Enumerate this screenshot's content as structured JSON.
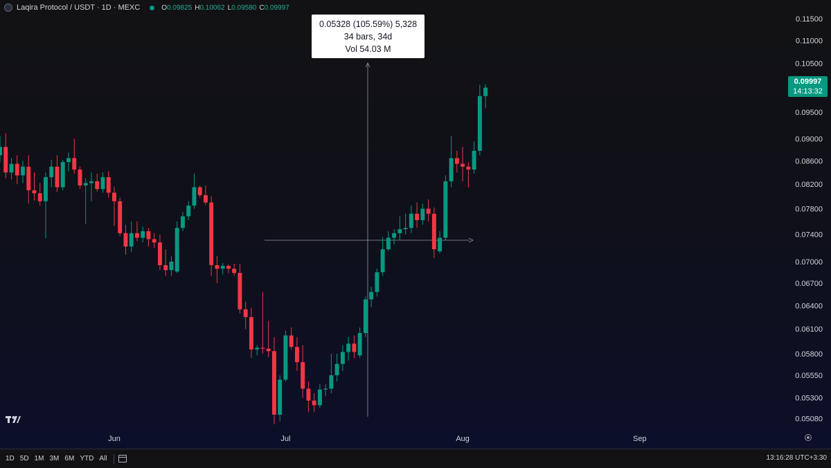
{
  "header": {
    "symbol": "Laqira Protocol / USDT · 1D · MEXC",
    "open_label": "O",
    "open": "0.09825",
    "high_label": "H",
    "high": "0.10062",
    "low_label": "L",
    "low": "0.09580",
    "close_label": "C",
    "close": "0.09997"
  },
  "measure": {
    "line1": "0.05328 (105.59%) 5,328",
    "line2": "34 bars, 34d",
    "line3": "Vol 54.03 M"
  },
  "price_tag": {
    "price": "0.09997",
    "countdown": "14:13:32"
  },
  "bottom_bar": {
    "ranges": [
      "1D",
      "5D",
      "1M",
      "3M",
      "6M",
      "YTD",
      "All"
    ],
    "clock": "13:16:28 UTC+3:30"
  },
  "colors": {
    "up": "#089981",
    "down": "#f23645",
    "text": "#d1d4dc"
  },
  "icons": [
    "tradingview-logo-icon",
    "calendar-icon",
    "gear-icon"
  ],
  "chart_data": {
    "type": "candlestick",
    "y_ticks": [
      "0.11500",
      "0.11000",
      "0.10500",
      "0.10000",
      "0.09500",
      "0.09000",
      "0.08600",
      "0.08200",
      "0.07800",
      "0.07400",
      "0.07000",
      "0.06700",
      "0.06400",
      "0.06100",
      "0.05800",
      "0.05550",
      "0.05300",
      "0.05080"
    ],
    "x_ticks": [
      "Jun",
      "Jul",
      "Aug",
      "Sep"
    ],
    "scale": "log",
    "ylim": [
      0.0497,
      0.1195
    ],
    "x_start": "2024-05-12",
    "x_end": "2024-09-26",
    "grid": false,
    "candles": [
      {
        "date": "2024-05-12",
        "o": 0.087,
        "h": 0.0905,
        "l": 0.0858,
        "c": 0.0885
      },
      {
        "date": "2024-05-13",
        "o": 0.0885,
        "h": 0.091,
        "l": 0.083,
        "c": 0.084
      },
      {
        "date": "2024-05-14",
        "o": 0.084,
        "h": 0.0865,
        "l": 0.0828,
        "c": 0.0855
      },
      {
        "date": "2024-05-15",
        "o": 0.0855,
        "h": 0.087,
        "l": 0.082,
        "c": 0.0835
      },
      {
        "date": "2024-05-16",
        "o": 0.0835,
        "h": 0.086,
        "l": 0.0822,
        "c": 0.085
      },
      {
        "date": "2024-05-17",
        "o": 0.085,
        "h": 0.087,
        "l": 0.0788,
        "c": 0.081
      },
      {
        "date": "2024-05-18",
        "o": 0.081,
        "h": 0.084,
        "l": 0.0793,
        "c": 0.0805
      },
      {
        "date": "2024-05-19",
        "o": 0.0805,
        "h": 0.0822,
        "l": 0.0785,
        "c": 0.0792
      },
      {
        "date": "2024-05-20",
        "o": 0.0792,
        "h": 0.084,
        "l": 0.0734,
        "c": 0.0832
      },
      {
        "date": "2024-05-21",
        "o": 0.0832,
        "h": 0.0862,
        "l": 0.0815,
        "c": 0.085
      },
      {
        "date": "2024-05-22",
        "o": 0.085,
        "h": 0.087,
        "l": 0.0807,
        "c": 0.0815
      },
      {
        "date": "2024-05-23",
        "o": 0.0815,
        "h": 0.0862,
        "l": 0.081,
        "c": 0.0858
      },
      {
        "date": "2024-05-24",
        "o": 0.0858,
        "h": 0.0875,
        "l": 0.0842,
        "c": 0.0865
      },
      {
        "date": "2024-05-25",
        "o": 0.0865,
        "h": 0.09,
        "l": 0.0838,
        "c": 0.0845
      },
      {
        "date": "2024-05-26",
        "o": 0.0845,
        "h": 0.085,
        "l": 0.0812,
        "c": 0.0818
      },
      {
        "date": "2024-05-27",
        "o": 0.0818,
        "h": 0.083,
        "l": 0.0756,
        "c": 0.0822
      },
      {
        "date": "2024-05-28",
        "o": 0.0822,
        "h": 0.084,
        "l": 0.0792,
        "c": 0.0825
      },
      {
        "date": "2024-05-29",
        "o": 0.0825,
        "h": 0.0838,
        "l": 0.0808,
        "c": 0.0812
      },
      {
        "date": "2024-05-30",
        "o": 0.0812,
        "h": 0.084,
        "l": 0.0806,
        "c": 0.0832
      },
      {
        "date": "2024-05-31",
        "o": 0.0832,
        "h": 0.0842,
        "l": 0.0798,
        "c": 0.0806
      },
      {
        "date": "2024-06-01",
        "o": 0.0806,
        "h": 0.0816,
        "l": 0.0753,
        "c": 0.0792
      },
      {
        "date": "2024-06-02",
        "o": 0.0792,
        "h": 0.0798,
        "l": 0.0738,
        "c": 0.0742
      },
      {
        "date": "2024-06-03",
        "o": 0.0742,
        "h": 0.0755,
        "l": 0.071,
        "c": 0.0722
      },
      {
        "date": "2024-06-04",
        "o": 0.0722,
        "h": 0.076,
        "l": 0.0714,
        "c": 0.0742
      },
      {
        "date": "2024-06-05",
        "o": 0.0742,
        "h": 0.076,
        "l": 0.073,
        "c": 0.0735
      },
      {
        "date": "2024-06-06",
        "o": 0.0735,
        "h": 0.0752,
        "l": 0.0728,
        "c": 0.0745
      },
      {
        "date": "2024-06-07",
        "o": 0.0745,
        "h": 0.075,
        "l": 0.0722,
        "c": 0.0733
      },
      {
        "date": "2024-06-08",
        "o": 0.0733,
        "h": 0.0742,
        "l": 0.072,
        "c": 0.0728
      },
      {
        "date": "2024-06-09",
        "o": 0.0728,
        "h": 0.074,
        "l": 0.0688,
        "c": 0.0695
      },
      {
        "date": "2024-06-10",
        "o": 0.0695,
        "h": 0.0718,
        "l": 0.068,
        "c": 0.0688
      },
      {
        "date": "2024-06-11",
        "o": 0.0688,
        "h": 0.0708,
        "l": 0.068,
        "c": 0.07
      },
      {
        "date": "2024-06-12",
        "o": 0.0686,
        "h": 0.076,
        "l": 0.0684,
        "c": 0.075
      },
      {
        "date": "2024-06-13",
        "o": 0.075,
        "h": 0.0775,
        "l": 0.0745,
        "c": 0.0768
      },
      {
        "date": "2024-06-14",
        "o": 0.0768,
        "h": 0.0792,
        "l": 0.0762,
        "c": 0.0785
      },
      {
        "date": "2024-06-15",
        "o": 0.0785,
        "h": 0.0838,
        "l": 0.078,
        "c": 0.0815
      },
      {
        "date": "2024-06-16",
        "o": 0.0815,
        "h": 0.0818,
        "l": 0.0798,
        "c": 0.0802
      },
      {
        "date": "2024-06-17",
        "o": 0.0802,
        "h": 0.0818,
        "l": 0.0786,
        "c": 0.079
      },
      {
        "date": "2024-06-18",
        "o": 0.079,
        "h": 0.08,
        "l": 0.068,
        "c": 0.0695
      },
      {
        "date": "2024-06-19",
        "o": 0.0695,
        "h": 0.0708,
        "l": 0.067,
        "c": 0.069
      },
      {
        "date": "2024-06-20",
        "o": 0.069,
        "h": 0.0698,
        "l": 0.0682,
        "c": 0.0694
      },
      {
        "date": "2024-06-21",
        "o": 0.0694,
        "h": 0.0696,
        "l": 0.0684,
        "c": 0.069
      },
      {
        "date": "2024-06-22",
        "o": 0.069,
        "h": 0.0697,
        "l": 0.068,
        "c": 0.0684
      },
      {
        "date": "2024-06-23",
        "o": 0.0684,
        "h": 0.0697,
        "l": 0.063,
        "c": 0.0635
      },
      {
        "date": "2024-06-24",
        "o": 0.0635,
        "h": 0.0645,
        "l": 0.061,
        "c": 0.0625
      },
      {
        "date": "2024-06-25",
        "o": 0.0625,
        "h": 0.0637,
        "l": 0.0575,
        "c": 0.0585
      },
      {
        "date": "2024-06-26",
        "o": 0.0585,
        "h": 0.059,
        "l": 0.0578,
        "c": 0.0587
      },
      {
        "date": "2024-06-27",
        "o": 0.0587,
        "h": 0.0658,
        "l": 0.058,
        "c": 0.0586
      },
      {
        "date": "2024-06-28",
        "o": 0.0586,
        "h": 0.062,
        "l": 0.0576,
        "c": 0.0583
      },
      {
        "date": "2024-06-29",
        "o": 0.0583,
        "h": 0.06,
        "l": 0.0502,
        "c": 0.0512
      },
      {
        "date": "2024-06-30",
        "o": 0.0512,
        "h": 0.0555,
        "l": 0.0505,
        "c": 0.055
      },
      {
        "date": "2024-07-01",
        "o": 0.055,
        "h": 0.0608,
        "l": 0.0548,
        "c": 0.0602
      },
      {
        "date": "2024-07-02",
        "o": 0.0602,
        "h": 0.0612,
        "l": 0.0585,
        "c": 0.0588
      },
      {
        "date": "2024-07-03",
        "o": 0.0588,
        "h": 0.06,
        "l": 0.056,
        "c": 0.057
      },
      {
        "date": "2024-07-04",
        "o": 0.057,
        "h": 0.059,
        "l": 0.053,
        "c": 0.054
      },
      {
        "date": "2024-07-05",
        "o": 0.054,
        "h": 0.0548,
        "l": 0.0515,
        "c": 0.0527
      },
      {
        "date": "2024-07-06",
        "o": 0.0527,
        "h": 0.0535,
        "l": 0.0515,
        "c": 0.0522
      },
      {
        "date": "2024-07-07",
        "o": 0.0522,
        "h": 0.0545,
        "l": 0.0519,
        "c": 0.0539
      },
      {
        "date": "2024-07-08",
        "o": 0.0539,
        "h": 0.0545,
        "l": 0.0532,
        "c": 0.054
      },
      {
        "date": "2024-07-09",
        "o": 0.054,
        "h": 0.058,
        "l": 0.0535,
        "c": 0.0555
      },
      {
        "date": "2024-07-10",
        "o": 0.0555,
        "h": 0.058,
        "l": 0.0548,
        "c": 0.0568
      },
      {
        "date": "2024-07-11",
        "o": 0.0568,
        "h": 0.059,
        "l": 0.056,
        "c": 0.0582
      },
      {
        "date": "2024-07-12",
        "o": 0.0582,
        "h": 0.06,
        "l": 0.0572,
        "c": 0.0592
      },
      {
        "date": "2024-07-13",
        "o": 0.0592,
        "h": 0.0602,
        "l": 0.0575,
        "c": 0.0582
      },
      {
        "date": "2024-07-14",
        "o": 0.0578,
        "h": 0.0612,
        "l": 0.0575,
        "c": 0.0605
      },
      {
        "date": "2024-07-15",
        "o": 0.0605,
        "h": 0.0652,
        "l": 0.06,
        "c": 0.0648
      },
      {
        "date": "2024-07-16",
        "o": 0.0648,
        "h": 0.0665,
        "l": 0.0638,
        "c": 0.0658
      },
      {
        "date": "2024-07-17",
        "o": 0.0658,
        "h": 0.069,
        "l": 0.0652,
        "c": 0.0685
      },
      {
        "date": "2024-07-18",
        "o": 0.0685,
        "h": 0.0736,
        "l": 0.068,
        "c": 0.0718
      },
      {
        "date": "2024-07-19",
        "o": 0.0718,
        "h": 0.0745,
        "l": 0.0715,
        "c": 0.0735
      },
      {
        "date": "2024-07-20",
        "o": 0.0735,
        "h": 0.0748,
        "l": 0.0725,
        "c": 0.0742
      },
      {
        "date": "2024-07-21",
        "o": 0.0742,
        "h": 0.0768,
        "l": 0.0732,
        "c": 0.0748
      },
      {
        "date": "2024-07-22",
        "o": 0.0748,
        "h": 0.0772,
        "l": 0.074,
        "c": 0.075
      },
      {
        "date": "2024-07-23",
        "o": 0.075,
        "h": 0.0785,
        "l": 0.0742,
        "c": 0.0772
      },
      {
        "date": "2024-07-24",
        "o": 0.0772,
        "h": 0.079,
        "l": 0.075,
        "c": 0.0762
      },
      {
        "date": "2024-07-25",
        "o": 0.0762,
        "h": 0.0788,
        "l": 0.0755,
        "c": 0.078
      },
      {
        "date": "2024-07-26",
        "o": 0.078,
        "h": 0.0795,
        "l": 0.076,
        "c": 0.0772
      },
      {
        "date": "2024-07-27",
        "o": 0.0772,
        "h": 0.0782,
        "l": 0.0705,
        "c": 0.0718
      },
      {
        "date": "2024-07-28",
        "o": 0.0715,
        "h": 0.0745,
        "l": 0.0712,
        "c": 0.0735
      },
      {
        "date": "2024-07-29",
        "o": 0.0735,
        "h": 0.0835,
        "l": 0.0732,
        "c": 0.0825
      },
      {
        "date": "2024-07-30",
        "o": 0.0825,
        "h": 0.0905,
        "l": 0.0815,
        "c": 0.0865
      },
      {
        "date": "2024-07-31",
        "o": 0.0865,
        "h": 0.0878,
        "l": 0.084,
        "c": 0.0855
      },
      {
        "date": "2024-08-01",
        "o": 0.0855,
        "h": 0.0885,
        "l": 0.0825,
        "c": 0.085
      },
      {
        "date": "2024-08-02",
        "o": 0.085,
        "h": 0.0858,
        "l": 0.0815,
        "c": 0.0845
      },
      {
        "date": "2024-08-03",
        "o": 0.0845,
        "h": 0.0895,
        "l": 0.0838,
        "c": 0.0878
      },
      {
        "date": "2024-08-04",
        "o": 0.0878,
        "h": 0.1005,
        "l": 0.087,
        "c": 0.0982
      },
      {
        "date": "2024-08-05",
        "o": 0.0982,
        "h": 0.1006,
        "l": 0.0958,
        "c": 0.0999
      }
    ]
  }
}
